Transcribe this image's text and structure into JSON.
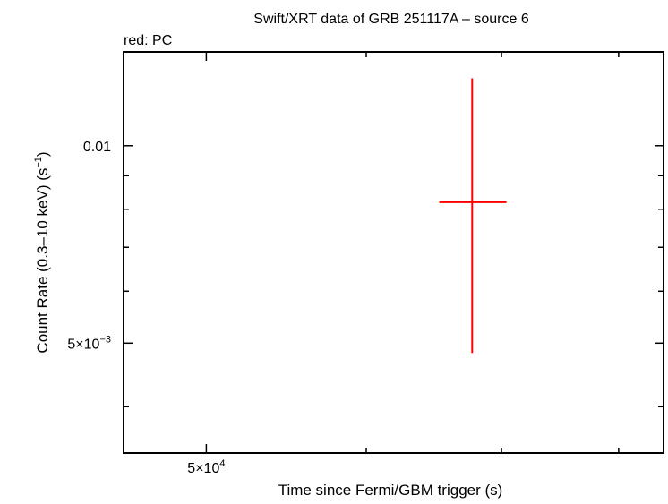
{
  "chart_data": {
    "type": "scatter",
    "title": "Swift/XRT data of GRB 251117A – source 6",
    "subtitle": "red: PC",
    "xlabel": "Time since Fermi/GBM trigger (s)",
    "ylabel_main": "Count Rate (0.3–10 keV) (s",
    "ylabel_sup": "−1",
    "ylabel_end": ")",
    "x_scale": "log",
    "y_scale": "log",
    "xlim": [
      45500,
      84200
    ],
    "ylim": [
      0.0034,
      0.0139
    ],
    "grid": false,
    "x_major_ticks": [
      {
        "value": 50000,
        "label_base": "5×10",
        "label_exp": "4"
      }
    ],
    "x_minor_ticks": [
      60000,
      70000,
      80000
    ],
    "y_major_ticks": [
      {
        "value": 0.01,
        "label_base": "0.01",
        "label_exp": ""
      },
      {
        "value": 0.005,
        "label_base": "5×10",
        "label_exp": "−3"
      }
    ],
    "y_minor_ticks": [
      0.009,
      0.008,
      0.007,
      0.006,
      0.004
    ],
    "series": [
      {
        "name": "PC",
        "color": "#ff0000",
        "points": [
          {
            "x": 67700,
            "x_lo": 65200,
            "x_hi": 70400,
            "y": 0.0082,
            "y_lo": 0.00483,
            "y_hi": 0.01267
          }
        ]
      }
    ]
  }
}
